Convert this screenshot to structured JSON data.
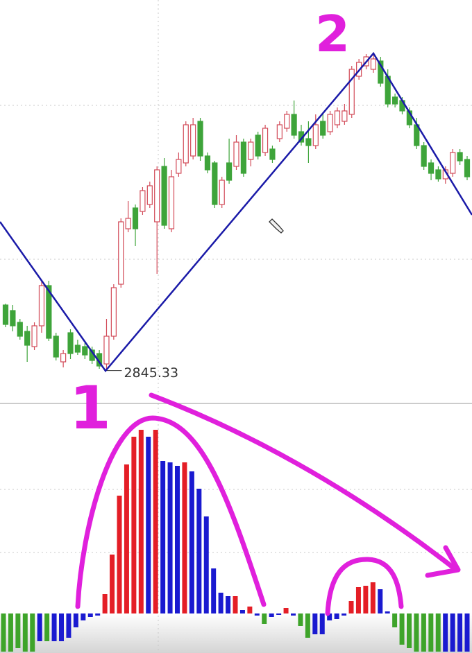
{
  "chart_data": [
    {
      "type": "candlestick",
      "open": [
        2940,
        2932,
        2915,
        2902,
        2880,
        2910,
        2968,
        2895,
        2858,
        2900,
        2882,
        2880,
        2875,
        2870,
        2855,
        2895,
        2970,
        3050,
        3080,
        3075,
        3085,
        3060,
        3140,
        3050,
        3130,
        3145,
        3155,
        3205,
        3155,
        3145,
        3085,
        3145,
        3140,
        3175,
        3150,
        3185,
        3160,
        3165,
        3180,
        3195,
        3215,
        3190,
        3180,
        3170,
        3205,
        3190,
        3200,
        3205,
        3215,
        3270,
        3285,
        3280,
        3292,
        3270,
        3240,
        3235,
        3220,
        3200,
        3170,
        3145,
        3135,
        3122,
        3130,
        3160,
        3150
      ],
      "high": [
        2942,
        2940,
        2920,
        2910,
        2915,
        2975,
        2975,
        2900,
        2875,
        2905,
        2890,
        2885,
        2880,
        2875,
        2920,
        2970,
        3065,
        3090,
        3085,
        3110,
        3118,
        3140,
        3152,
        3135,
        3160,
        3205,
        3210,
        3210,
        3160,
        3148,
        3125,
        3180,
        3185,
        3180,
        3180,
        3190,
        3200,
        3170,
        3205,
        3220,
        3235,
        3200,
        3205,
        3215,
        3215,
        3220,
        3225,
        3230,
        3285,
        3295,
        3302,
        3303,
        3298,
        3280,
        3245,
        3240,
        3225,
        3210,
        3175,
        3150,
        3140,
        3140,
        3165,
        3165,
        3155
      ],
      "low": [
        2908,
        2902,
        2890,
        2858,
        2875,
        2900,
        2888,
        2860,
        2850,
        2862,
        2868,
        2862,
        2855,
        2848,
        2845.33,
        2890,
        2965,
        3045,
        3025,
        3070,
        3080,
        2985,
        3050,
        3045,
        3125,
        3140,
        3150,
        3148,
        3130,
        3080,
        3080,
        3115,
        3135,
        3125,
        3140,
        3150,
        3155,
        3145,
        3175,
        3190,
        3180,
        3170,
        3145,
        3165,
        3180,
        3185,
        3195,
        3200,
        3210,
        3265,
        3280,
        3275,
        3255,
        3225,
        3225,
        3215,
        3195,
        3165,
        3135,
        3120,
        3118,
        3115,
        3125,
        3142,
        3120
      ],
      "close": [
        2912,
        2910,
        2895,
        2882,
        2910,
        2968,
        2892,
        2865,
        2870,
        2870,
        2872,
        2868,
        2860,
        2852,
        2895,
        2965,
        3060,
        3065,
        3050,
        3105,
        3112,
        3135,
        3055,
        3125,
        3150,
        3200,
        3200,
        3155,
        3135,
        3085,
        3120,
        3120,
        3175,
        3130,
        3175,
        3155,
        3195,
        3150,
        3200,
        3215,
        3185,
        3175,
        3170,
        3200,
        3185,
        3215,
        3220,
        3220,
        3280,
        3290,
        3298,
        3295,
        3260,
        3230,
        3230,
        3220,
        3200,
        3170,
        3140,
        3130,
        3122,
        3135,
        3160,
        3148,
        3125
      ],
      "up_color": "#d24a58",
      "down_color": "#3ea43a",
      "ylim": [
        2800,
        3380
      ]
    },
    {
      "type": "bar",
      "values": [
        -55,
        -55,
        -50,
        -55,
        -55,
        -40,
        -40,
        -40,
        -40,
        -35,
        -20,
        -10,
        -5,
        -3,
        28,
        85,
        170,
        215,
        255,
        265,
        255,
        265,
        220,
        218,
        213,
        218,
        205,
        180,
        140,
        65,
        30,
        25,
        25,
        5,
        10,
        -3,
        -15,
        -5,
        -2,
        8,
        -3,
        -18,
        -35,
        -30,
        -30,
        -10,
        -8,
        -3,
        18,
        38,
        40,
        45,
        35,
        3,
        -20,
        -45,
        -50,
        -55,
        -55,
        -55,
        -55,
        -55,
        -55,
        -55,
        -55
      ],
      "colors": [
        "#3ea42a",
        "#3ea42a",
        "#3ea42a",
        "#3ea42a",
        "#3ea42a",
        "#1a1ad0",
        "#3ea42a",
        "#1a1ad0",
        "#1a1ad0",
        "#1a1ad0",
        "#1a1ad0",
        "#1a1ad0",
        "#1a1ad0",
        "#1a1ad0",
        "#e41e26",
        "#e41e26",
        "#e41e26",
        "#e41e26",
        "#e41e26",
        "#e41e26",
        "#1a1ad0",
        "#e41e26",
        "#1a1ad0",
        "#1a1ad0",
        "#1a1ad0",
        "#e41e26",
        "#1a1ad0",
        "#1a1ad0",
        "#1a1ad0",
        "#1a1ad0",
        "#1a1ad0",
        "#1a1ad0",
        "#e41e26",
        "#1a1ad0",
        "#e41e26",
        "#1a1ad0",
        "#3ea42a",
        "#1a1ad0",
        "#1a1ad0",
        "#e41e26",
        "#1a1ad0",
        "#3ea42a",
        "#3ea42a",
        "#1a1ad0",
        "#1a1ad0",
        "#1a1ad0",
        "#1a1ad0",
        "#1a1ad0",
        "#e41e26",
        "#e41e26",
        "#e41e26",
        "#e41e26",
        "#1a1ad0",
        "#1a1ad0",
        "#3ea42a",
        "#3ea42a",
        "#3ea42a",
        "#3ea42a",
        "#3ea42a",
        "#3ea42a",
        "#3ea42a",
        "#1a1ad0",
        "#1a1ad0",
        "#1a1ad0",
        "#1a1ad0"
      ],
      "ylim": [
        -57,
        303
      ]
    }
  ],
  "handwriting": [
    "1",
    "2"
  ]
}
